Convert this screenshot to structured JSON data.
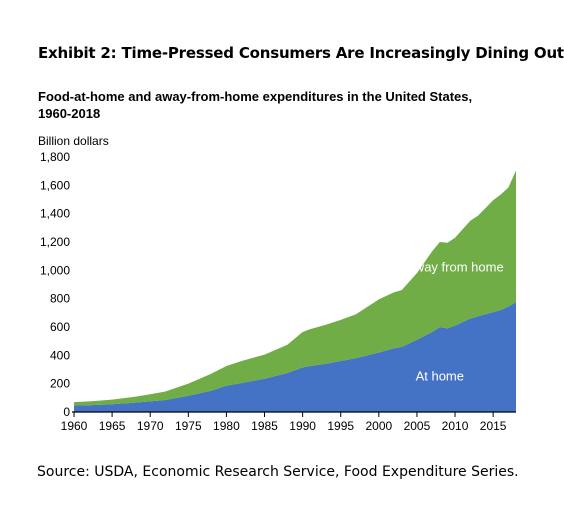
{
  "exhibit_title": "Exhibit 2: Time-Pressed Consumers Are Increasingly Dining Out",
  "source_note": "Source: USDA, Economic Research Service, Food Expenditure Series.",
  "colors": {
    "at_home": "#4472c4",
    "away_from_home": "#70ad47",
    "axis": "#000000",
    "series_label_text": "#ffffff"
  },
  "chart_data": {
    "type": "area",
    "stacked": true,
    "title_line1": "Food-at-home and away-from-home expenditures in the United States,",
    "title_line2": "1960-2018",
    "ylabel": "Billion dollars",
    "xlabel": "",
    "xlim": [
      1960,
      2018
    ],
    "ylim": [
      0,
      1800
    ],
    "x_ticks": [
      1960,
      1965,
      1970,
      1975,
      1980,
      1985,
      1990,
      1995,
      2000,
      2005,
      2010,
      2015
    ],
    "y_ticks": [
      "0",
      "200",
      "400",
      "600",
      "800",
      "1,000",
      "1,200",
      "1,400",
      "1,600",
      "1,800"
    ],
    "y_tick_values": [
      0,
      200,
      400,
      600,
      800,
      1000,
      1200,
      1400,
      1600,
      1800
    ],
    "x": [
      1960,
      1962,
      1965,
      1968,
      1970,
      1972,
      1975,
      1978,
      1980,
      1982,
      1985,
      1988,
      1990,
      1991,
      1993,
      1995,
      1997,
      2000,
      2002,
      2003,
      2005,
      2007,
      2008,
      2009,
      2010,
      2012,
      2013,
      2015,
      2016,
      2017,
      2018
    ],
    "series": [
      {
        "name": "At home",
        "values": [
          45,
          48,
          55,
          66,
          75,
          85,
          115,
          150,
          185,
          205,
          235,
          275,
          315,
          325,
          340,
          360,
          380,
          420,
          450,
          460,
          510,
          565,
          600,
          590,
          610,
          660,
          675,
          705,
          720,
          745,
          775
        ]
      },
      {
        "name": "Away from home",
        "values": [
          25,
          27,
          32,
          42,
          50,
          60,
          85,
          120,
          140,
          155,
          170,
          200,
          250,
          260,
          275,
          290,
          310,
          375,
          395,
          400,
          470,
          570,
          600,
          605,
          620,
          690,
          710,
          790,
          815,
          840,
          930
        ]
      }
    ]
  }
}
